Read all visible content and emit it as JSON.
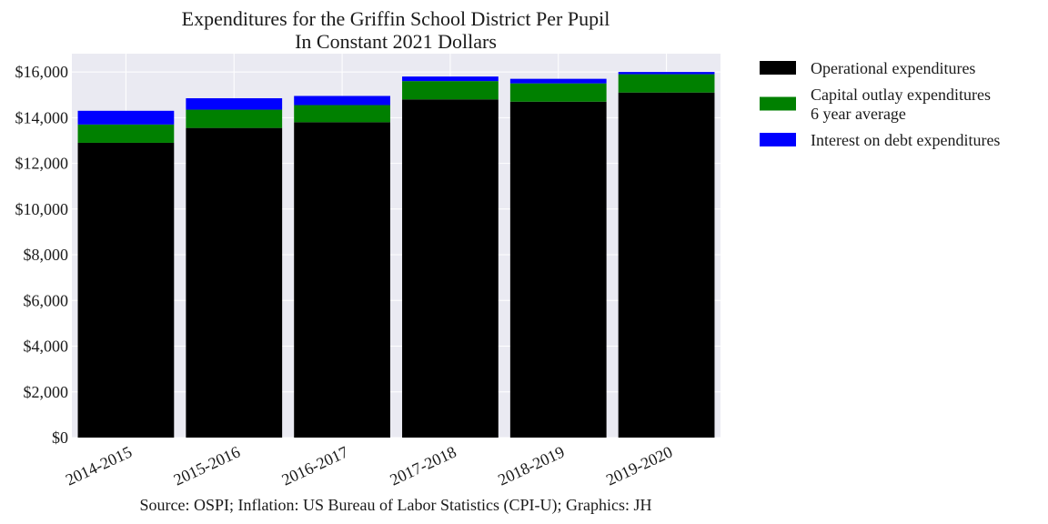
{
  "chart_data": {
    "type": "bar",
    "stacked": true,
    "title": "Expenditures for the Griffin School District Per Pupil",
    "subtitle": "In Constant 2021 Dollars",
    "xlabel": "",
    "ylabel": "",
    "ylim": [
      0,
      16800
    ],
    "yticks": [
      0,
      2000,
      4000,
      6000,
      8000,
      10000,
      12000,
      14000,
      16000
    ],
    "ytick_labels": [
      "$0",
      "$2,000",
      "$4,000",
      "$6,000",
      "$8,000",
      "$10,000",
      "$12,000",
      "$14,000",
      "$16,000"
    ],
    "categories": [
      "2014-2015",
      "2015-2016",
      "2016-2017",
      "2017-2018",
      "2018-2019",
      "2019-2020"
    ],
    "series": [
      {
        "name": "Operational expenditures",
        "color": "#000000",
        "values": [
          12900,
          13550,
          13800,
          14800,
          14700,
          15100
        ]
      },
      {
        "name": "Capital outlay expenditures\n6 year average",
        "color": "#008000",
        "values": [
          800,
          800,
          750,
          800,
          800,
          800
        ]
      },
      {
        "name": "Interest on debt expenditures",
        "color": "#0000ff",
        "values": [
          600,
          500,
          400,
          200,
          200,
          100
        ]
      }
    ],
    "grid": true,
    "legend_position": "outside-top-right",
    "source": "Source: OSPI; Inflation: US Bureau of Labor Statistics (CPI-U); Graphics: JH"
  }
}
